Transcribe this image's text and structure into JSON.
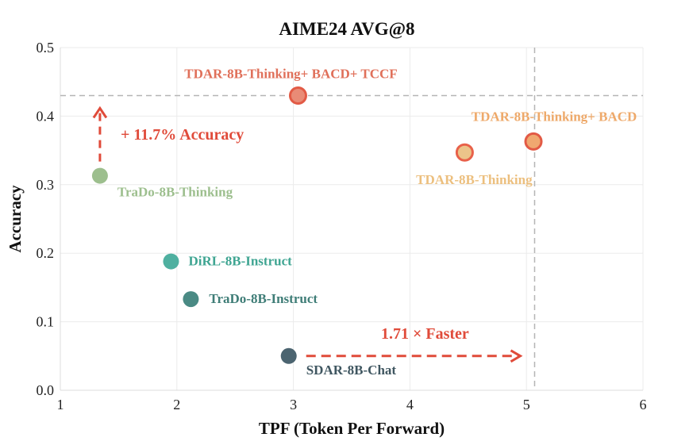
{
  "chart_data": {
    "type": "scatter",
    "title": "AIME24 AVG@8",
    "xlabel": "TPF (Token Per Forward)",
    "ylabel": "Accuracy",
    "xlim": [
      1,
      6
    ],
    "ylim": [
      0,
      0.5
    ],
    "xticks": [
      "1",
      "2",
      "3",
      "4",
      "5",
      "6"
    ],
    "yticks": [
      "0.0",
      "0.1",
      "0.2",
      "0.3",
      "0.4",
      "0.5"
    ],
    "grid": true,
    "points": [
      {
        "label": "TraDo-8B-Thinking",
        "x": 1.34,
        "y": 0.313,
        "color": "#9dbf8e",
        "label_color": "#9dbf8e"
      },
      {
        "label": "DiRL-8B-Instruct",
        "x": 1.95,
        "y": 0.188,
        "color": "#4fb0a0",
        "label_color": "#3fa592"
      },
      {
        "label": "TraDo-8B-Instruct",
        "x": 2.12,
        "y": 0.133,
        "color": "#4a8a84",
        "label_color": "#3f7d77"
      },
      {
        "label": "SDAR-8B-Chat",
        "x": 2.96,
        "y": 0.05,
        "color": "#4b6470",
        "label_color": "#3f5660"
      },
      {
        "label": "TDAR-8B-Thinking",
        "x": 4.47,
        "y": 0.347,
        "color": "#ecc48a",
        "edge": "#e8614a",
        "label_color": "#ecbf7e"
      },
      {
        "label": "TDAR-8B-Thinking+ BACD",
        "x": 5.06,
        "y": 0.363,
        "color": "#f0a870",
        "edge": "#e25a45",
        "label_color": "#eea96a"
      },
      {
        "label": "TDAR-8B-Thinking+ BACD+ TCCF",
        "x": 3.04,
        "y": 0.43,
        "color": "#e98b76",
        "edge": "#e25a45",
        "label_color": "#e0705a"
      }
    ],
    "reference_lines": {
      "horizontal_y": 0.43,
      "vertical_x": 5.07
    },
    "annotations": [
      {
        "text": "+ 11.7% Accuracy",
        "color": "#e04b3a"
      },
      {
        "text": "1.71 × Faster",
        "color": "#e04b3a"
      }
    ]
  }
}
